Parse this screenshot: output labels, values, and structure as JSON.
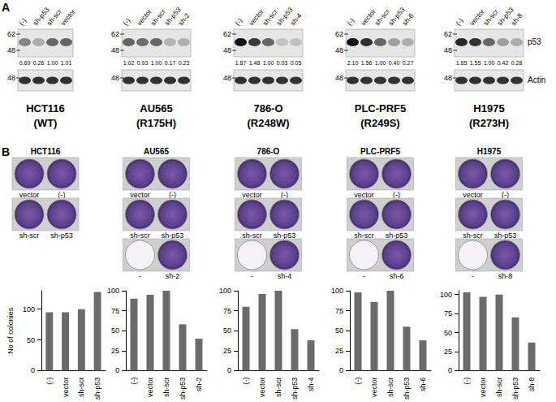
{
  "panel_labels": [
    "A",
    "B"
  ],
  "blot": {
    "p53_markers": [
      62,
      48
    ],
    "actin_markers": [
      48
    ],
    "band_labels": [
      "p53",
      "Actin"
    ],
    "cell_lines": [
      {
        "name": "HCT116",
        "mutation": "(WT)",
        "lanes": [
          "(-)",
          "sh-p53",
          "sh-scr",
          "vector"
        ],
        "quantification": [
          "0.69",
          "0.26",
          "1.00",
          "1.01"
        ]
      },
      {
        "name": "AU565",
        "mutation": "(R175H)",
        "lanes": [
          "(-)",
          "vector",
          "sh-scr",
          "sh-p53",
          "sh-2"
        ],
        "quantification": [
          "1.02",
          "0.93",
          "1.00",
          "0.17",
          "0.23"
        ]
      },
      {
        "name": "786-O",
        "mutation": "(R248W)",
        "lanes": [
          "(-)",
          "vector",
          "sh-scr",
          "sh-p53",
          "sh-4"
        ],
        "quantification": [
          "1.87",
          "1.48",
          "1.00",
          "0.03",
          "0.05"
        ]
      },
      {
        "name": "PLC-PRF5",
        "mutation": "(R249S)",
        "lanes": [
          "(-)",
          "vector",
          "sh-scr",
          "sh-p53",
          "sh-6"
        ],
        "quantification": [
          "2.10",
          "1.56",
          "1.00",
          "0.40",
          "0.27"
        ]
      },
      {
        "name": "H1975",
        "mutation": "(R273H)",
        "lanes": [
          "(-)",
          "vector",
          "sh-scr",
          "sh-p53",
          "sh-8"
        ],
        "quantification": [
          "1.65",
          "1.55",
          "1.00",
          "0.42",
          "0.28"
        ]
      }
    ]
  },
  "plates": [
    [
      [
        "vector",
        "(-)"
      ],
      [
        "sh-scr",
        "sh-p53"
      ]
    ],
    [
      [
        "vector",
        "(-)"
      ],
      [
        "sh-scr",
        "sh-p53"
      ],
      [
        "-",
        "sh-2"
      ]
    ],
    [
      [
        "vector",
        "(-)"
      ],
      [
        "sh-scr",
        "sh-p53"
      ],
      [
        "-",
        "sh-4"
      ]
    ],
    [
      [
        "vector",
        "(-)"
      ],
      [
        "sh-scr",
        "sh-p53"
      ],
      [
        "-",
        "sh-6"
      ]
    ],
    [
      [
        "vector",
        "(-)"
      ],
      [
        "sh-scr",
        "sh-p53"
      ],
      [
        "-",
        "sh-8"
      ]
    ]
  ],
  "chart_data": [
    {
      "type": "bar",
      "title": "HCT116",
      "ylabel": "No of colonies",
      "categories": [
        "(-)",
        "vector",
        "sh-scr",
        "sh-p53"
      ],
      "values": [
        95,
        95,
        100,
        128
      ],
      "color": "#6b6b6b",
      "ylim": [
        0,
        130
      ],
      "yticks": [
        0,
        50,
        100
      ],
      "grid": false
    },
    {
      "type": "bar",
      "title": "AU565",
      "categories": [
        "(-)",
        "vector",
        "sh-scr",
        "sh-p53",
        "sh-2"
      ],
      "values": [
        90,
        95,
        100,
        58,
        40
      ],
      "color": "#6b6b6b",
      "ylim": [
        0,
        100
      ],
      "yticks": [
        0,
        25,
        50,
        75,
        100
      ],
      "grid": false
    },
    {
      "type": "bar",
      "title": "786-O",
      "categories": [
        "(-)",
        "vector",
        "sh-scr",
        "sh-p53",
        "sh-4"
      ],
      "values": [
        80,
        96,
        100,
        52,
        38
      ],
      "color": "#6b6b6b",
      "ylim": [
        0,
        100
      ],
      "yticks": [
        0,
        25,
        50,
        75,
        100
      ],
      "grid": false
    },
    {
      "type": "bar",
      "title": "PLC-PRF5",
      "categories": [
        "(-)",
        "vector",
        "sh-scr",
        "sh-p53",
        "sh-6"
      ],
      "values": [
        98,
        86,
        100,
        55,
        38
      ],
      "color": "#6b6b6b",
      "ylim": [
        0,
        100
      ],
      "yticks": [
        0,
        25,
        50,
        75,
        100
      ],
      "grid": false
    },
    {
      "type": "bar",
      "title": "H1975",
      "categories": [
        "(-)",
        "vector",
        "sh-scr",
        "sh-p53",
        "sh-8"
      ],
      "values": [
        103,
        97,
        100,
        70,
        37
      ],
      "color": "#6b6b6b",
      "ylim": [
        0,
        105
      ],
      "yticks": [
        0,
        25,
        50,
        75,
        100
      ],
      "grid": false
    }
  ]
}
